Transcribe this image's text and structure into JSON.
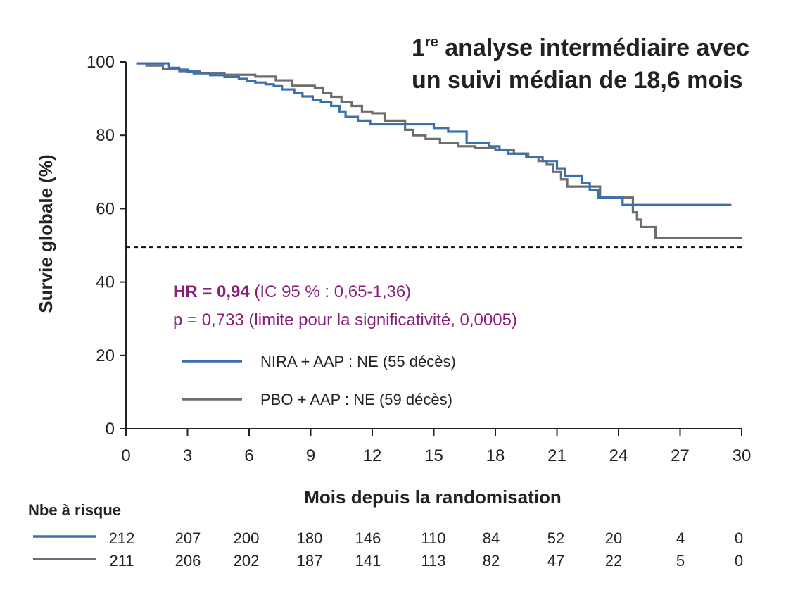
{
  "chart_data": {
    "type": "line",
    "title_line1_main": "1",
    "title_line1_sup": "re",
    "title_line1_rest": " analyse intermédiaire avec",
    "title_line2": "un suivi médian de 18,6 mois",
    "xlabel": "Mois depuis la randomisation",
    "ylabel": "Survie globale (%)",
    "xlim": [
      0,
      30
    ],
    "ylim": [
      0,
      100
    ],
    "x_ticks": [
      "0",
      "3",
      "6",
      "9",
      "12",
      "15",
      "18",
      "21",
      "24",
      "27",
      "30"
    ],
    "y_ticks": [
      "0",
      "20",
      "40",
      "60",
      "80",
      "100"
    ],
    "reference_line": {
      "y": 49.5,
      "style": "dashed"
    },
    "annotation": {
      "hr_bold": "HR = 0,94",
      "hr_rest": " (IC 95 % : 0,65-1,36)",
      "p_line": "p = 0,733 (limite pour la significativité, 0,0005)",
      "color": "#8a1f7a"
    },
    "legend_position": "center-left",
    "series": [
      {
        "name": "NIRA + AAP : NE (55 décès)",
        "color": "#3a6fb0",
        "x": [
          0.5,
          2.0,
          2.1,
          2.6,
          3.0,
          3.3,
          4.1,
          4.8,
          5.5,
          5.9,
          6.3,
          6.8,
          7.2,
          7.6,
          8.2,
          8.6,
          9.1,
          9.5,
          10.0,
          10.4,
          10.7,
          11.3,
          11.9,
          12.8,
          13.5,
          14.3,
          15.0,
          15.7,
          16.6,
          17.7,
          18.2,
          18.6,
          19.5,
          20.3,
          21.0,
          21.4,
          22.2,
          22.6,
          23.0,
          24.2,
          29.5
        ],
        "y": [
          99.6,
          99.6,
          98.4,
          97.9,
          97.4,
          96.9,
          96.4,
          95.9,
          95.4,
          94.9,
          94.4,
          93.9,
          93.4,
          92.5,
          91.6,
          90.6,
          89.6,
          89.1,
          88.0,
          86.5,
          85.0,
          84.0,
          83.0,
          83.0,
          83.0,
          83.0,
          82.0,
          81.0,
          78.0,
          77.0,
          76.0,
          75.0,
          74.0,
          73.0,
          71.0,
          69.0,
          67.0,
          65.0,
          63.0,
          61.0,
          61.0
        ]
      },
      {
        "name": "PBO + AAP : NE (59 décès)",
        "color": "#6d6d6d",
        "x": [
          0.5,
          1.0,
          1.8,
          2.6,
          3.6,
          4.8,
          6.3,
          7.3,
          8.1,
          9.2,
          9.6,
          10.0,
          10.5,
          11.0,
          11.5,
          12.0,
          12.6,
          13.6,
          14.0,
          14.6,
          15.3,
          16.2,
          17.0,
          18.0,
          18.9,
          19.6,
          20.1,
          20.5,
          20.8,
          21.2,
          21.5,
          22.2,
          23.1,
          23.8,
          24.7,
          24.9,
          25.1,
          25.3,
          25.8,
          30.0
        ],
        "y": [
          99.6,
          99.0,
          98.0,
          97.5,
          97.0,
          96.5,
          96.0,
          95.0,
          93.5,
          93.0,
          91.5,
          90.5,
          89.0,
          88.0,
          86.5,
          86.0,
          84.0,
          81.5,
          80.0,
          79.0,
          78.0,
          77.0,
          76.5,
          76.0,
          75.0,
          74.0,
          73.0,
          72.0,
          70.0,
          68.0,
          66.0,
          66.0,
          63.0,
          63.0,
          59.0,
          57.0,
          55.0,
          55.0,
          52.0,
          52.0
        ]
      }
    ],
    "risk_table": {
      "title": "Nbe à risque",
      "rows": [
        {
          "color": "#3a6fb0",
          "values": [
            "212",
            "207",
            "200",
            "180",
            "146",
            "110",
            "84",
            "52",
            "20",
            "4",
            "0"
          ]
        },
        {
          "color": "#6d6d6d",
          "values": [
            "211",
            "206",
            "202",
            "187",
            "141",
            "113",
            "82",
            "47",
            "22",
            "5",
            "0"
          ]
        }
      ]
    }
  }
}
